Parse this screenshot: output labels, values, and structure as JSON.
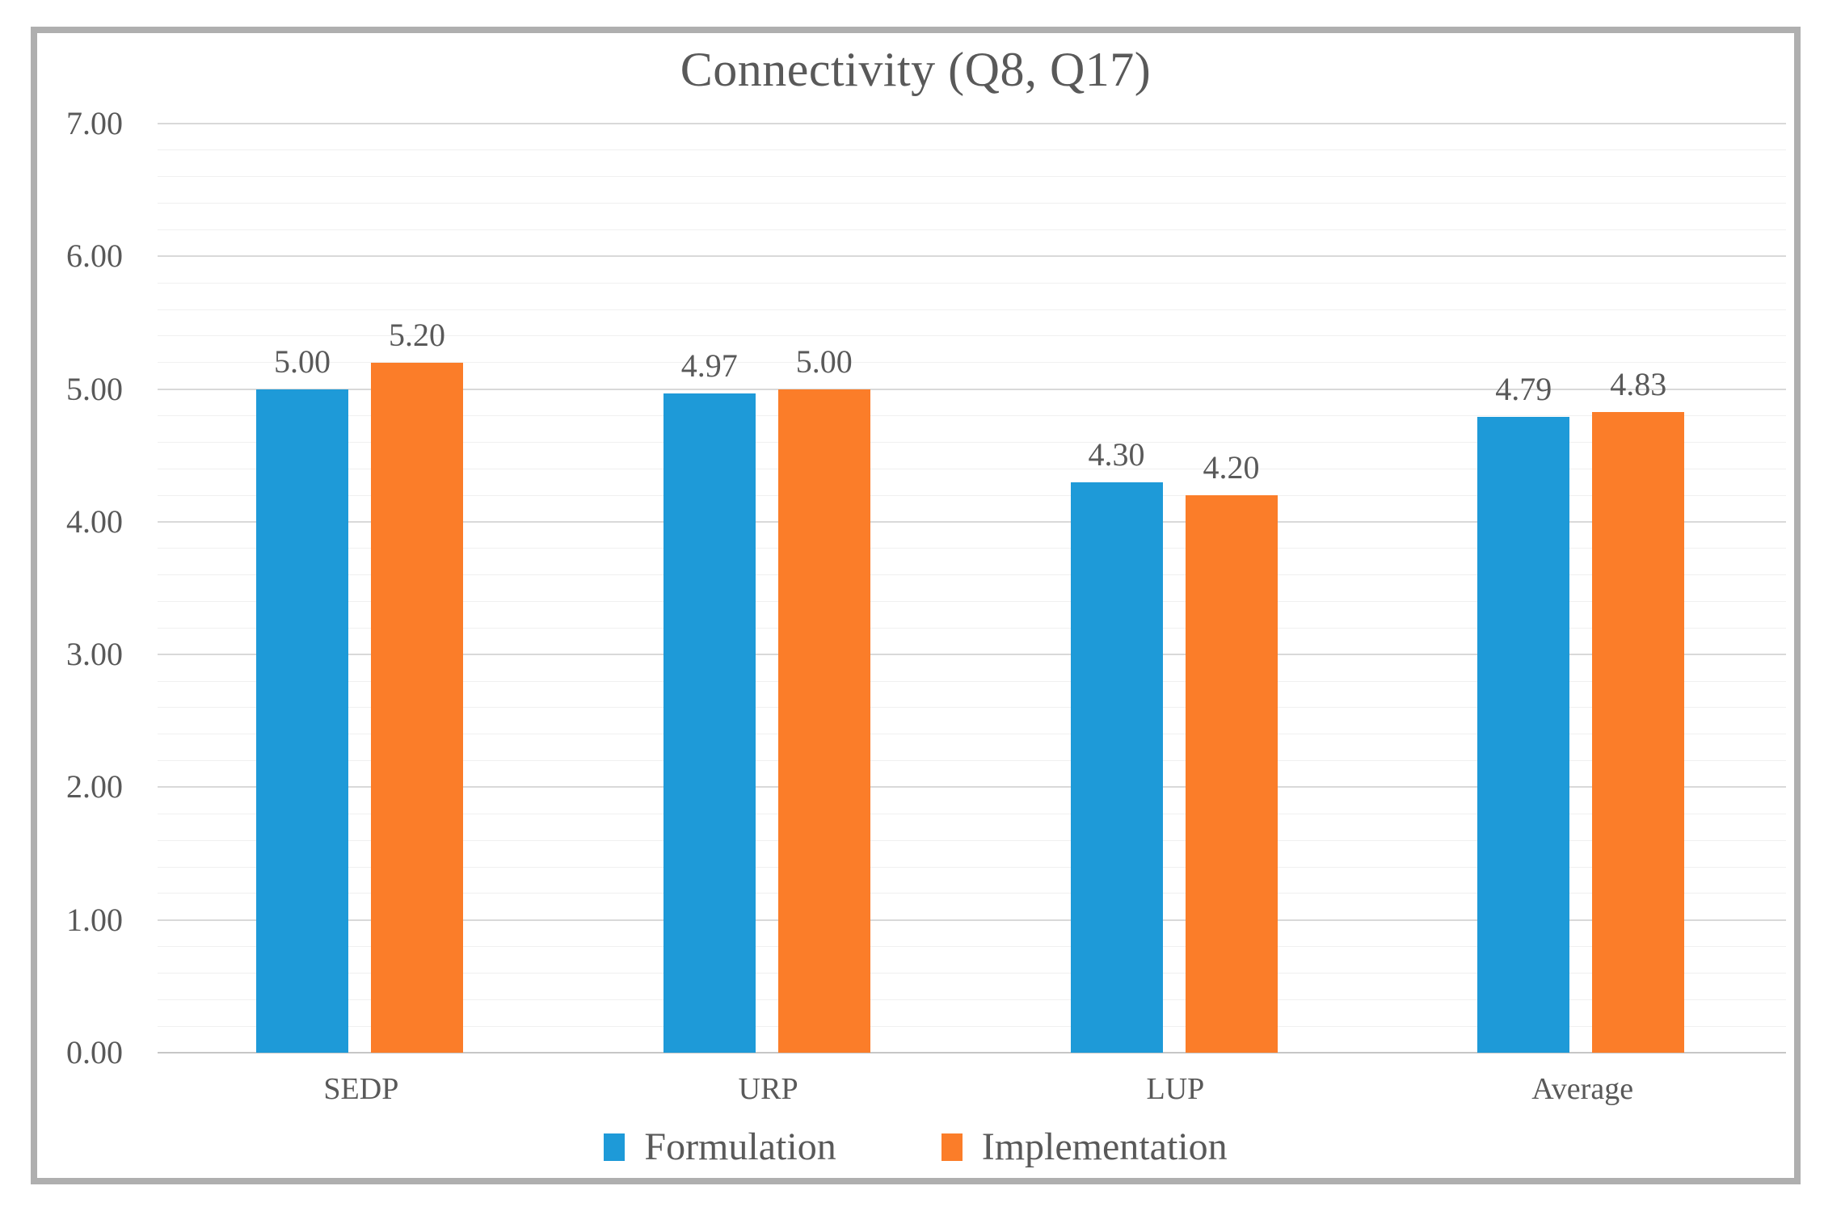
{
  "chart_data": {
    "type": "bar",
    "title": "Connectivity (Q8, Q17)",
    "categories": [
      "SEDP",
      "URP",
      "LUP",
      "Average"
    ],
    "series": [
      {
        "name": "Formulation",
        "color": "#1E9AD8",
        "values": [
          5.0,
          4.97,
          4.3,
          4.79
        ],
        "labels": [
          "5.00",
          "4.97",
          "4.30",
          "4.79"
        ]
      },
      {
        "name": "Implementation",
        "color": "#FB7D29",
        "values": [
          5.2,
          5.0,
          4.2,
          4.83
        ],
        "labels": [
          "5.20",
          "5.00",
          "4.20",
          "4.83"
        ]
      }
    ],
    "ylim": [
      0,
      7
    ],
    "y_major_step": 1.0,
    "y_minor_step": 0.2,
    "y_tick_labels": [
      "0.00",
      "1.00",
      "2.00",
      "3.00",
      "4.00",
      "5.00",
      "6.00",
      "7.00"
    ],
    "grid": true,
    "legend_position": "bottom",
    "colors": {
      "text": "#595959",
      "major_gridline": "#D9D9D9",
      "minor_gridline": "#F0F0F0",
      "axis_line": "#C6C6C6",
      "frame_border": "#AFAFAF"
    }
  }
}
